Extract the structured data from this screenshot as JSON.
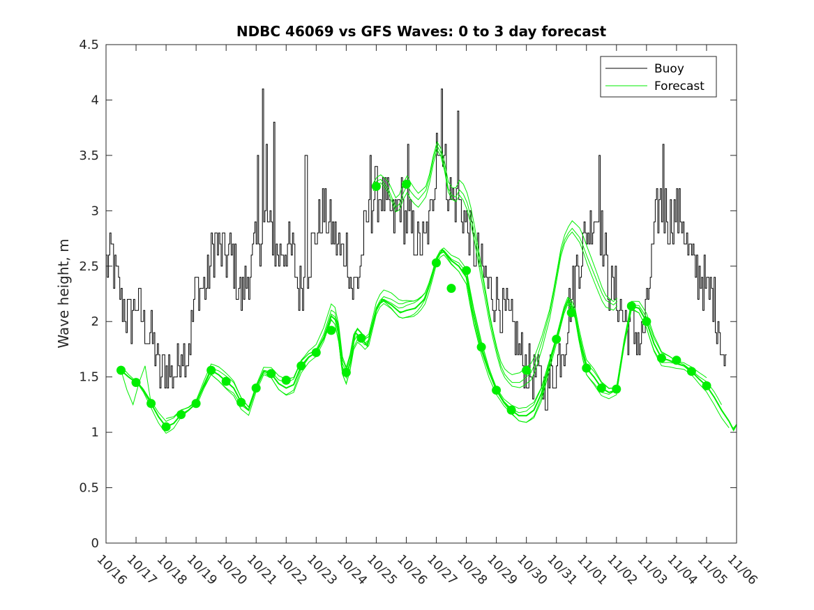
{
  "chart_data": {
    "type": "line",
    "title": "NDBC 46069 vs GFS Waves: 0 to 3 day forecast",
    "xlabel": "",
    "ylabel": "Wave height, m",
    "xlim": [
      0,
      21
    ],
    "ylim": [
      0,
      4.5
    ],
    "yticks": [
      0,
      0.5,
      1,
      1.5,
      2,
      2.5,
      3,
      3.5,
      4,
      4.5
    ],
    "ytick_labels": [
      "0",
      "0.5",
      "1",
      "1.5",
      "2",
      "2.5",
      "3",
      "3.5",
      "4",
      "4.5"
    ],
    "xtick_labels": [
      "10/16",
      "10/17",
      "10/18",
      "10/19",
      "10/20",
      "10/21",
      "10/22",
      "10/23",
      "10/24",
      "10/25",
      "10/26",
      "10/27",
      "10/28",
      "10/29",
      "10/30",
      "10/31",
      "11/01",
      "11/02",
      "11/03",
      "11/04",
      "11/05",
      "11/06"
    ],
    "legend": {
      "position": "top-right",
      "entries": [
        "Buoy",
        "Forecast"
      ]
    },
    "colors": {
      "buoy": "#000000",
      "forecast": "#00ee00",
      "axes": "#262626"
    },
    "buoy_anchors": [
      [
        0,
        2.5
      ],
      [
        0.2,
        2.6
      ],
      [
        0.3,
        2.4
      ],
      [
        0.5,
        2.2
      ],
      [
        0.8,
        2.0
      ],
      [
        1.0,
        2.2
      ],
      [
        1.2,
        2.0
      ],
      [
        1.4,
        1.9
      ],
      [
        1.6,
        1.8
      ],
      [
        1.8,
        1.5
      ],
      [
        2.0,
        1.6
      ],
      [
        2.3,
        1.5
      ],
      [
        2.5,
        1.8
      ],
      [
        2.7,
        1.7
      ],
      [
        3.0,
        2.3
      ],
      [
        3.3,
        2.3
      ],
      [
        3.6,
        2.7
      ],
      [
        3.9,
        2.6
      ],
      [
        4.2,
        2.6
      ],
      [
        4.5,
        2.2
      ],
      [
        4.7,
        2.4
      ],
      [
        5.0,
        2.7
      ],
      [
        5.3,
        2.9
      ],
      [
        5.5,
        2.8
      ],
      [
        5.7,
        2.6
      ],
      [
        6.0,
        2.7
      ],
      [
        6.2,
        2.6
      ],
      [
        6.4,
        2.3
      ],
      [
        6.6,
        2.4
      ],
      [
        6.8,
        2.6
      ],
      [
        7.0,
        2.8
      ],
      [
        7.2,
        3.0
      ],
      [
        7.4,
        2.9
      ],
      [
        7.6,
        2.8
      ],
      [
        7.8,
        2.6
      ],
      [
        8.0,
        2.7
      ],
      [
        8.2,
        2.3
      ],
      [
        8.4,
        2.4
      ],
      [
        8.6,
        2.8
      ],
      [
        8.8,
        3.0
      ],
      [
        9.0,
        3.2
      ],
      [
        9.2,
        3.1
      ],
      [
        9.4,
        3.0
      ],
      [
        9.6,
        2.9
      ],
      [
        9.8,
        3.1
      ],
      [
        10.0,
        2.9
      ],
      [
        10.2,
        2.8
      ],
      [
        10.4,
        2.7
      ],
      [
        10.6,
        2.7
      ],
      [
        10.8,
        2.9
      ],
      [
        11.0,
        3.6
      ],
      [
        11.2,
        3.5
      ],
      [
        11.4,
        3.2
      ],
      [
        11.6,
        3.1
      ],
      [
        11.8,
        3.0
      ],
      [
        12.0,
        2.9
      ],
      [
        12.2,
        2.7
      ],
      [
        12.4,
        2.6
      ],
      [
        12.6,
        2.4
      ],
      [
        12.8,
        2.3
      ],
      [
        13.0,
        2.2
      ],
      [
        13.2,
        2.1
      ],
      [
        13.4,
        2.0
      ],
      [
        13.6,
        1.9
      ],
      [
        13.8,
        1.7
      ],
      [
        14.0,
        1.6
      ],
      [
        14.3,
        1.5
      ],
      [
        14.6,
        1.4
      ],
      [
        15.0,
        1.6
      ],
      [
        15.3,
        1.9
      ],
      [
        15.6,
        2.4
      ],
      [
        16.0,
        2.8
      ],
      [
        16.3,
        3.0
      ],
      [
        16.5,
        2.8
      ],
      [
        16.7,
        2.4
      ],
      [
        17.0,
        2.2
      ],
      [
        17.3,
        2.0
      ],
      [
        17.6,
        1.9
      ],
      [
        17.8,
        1.8
      ],
      [
        18.0,
        2.1
      ],
      [
        18.2,
        2.6
      ],
      [
        18.4,
        3.1
      ],
      [
        18.6,
        3.0
      ],
      [
        18.8,
        2.9
      ],
      [
        19.0,
        3.0
      ],
      [
        19.2,
        2.9
      ],
      [
        19.4,
        2.6
      ],
      [
        19.6,
        2.5
      ],
      [
        19.8,
        2.4
      ],
      [
        20.0,
        2.3
      ],
      [
        20.2,
        2.2
      ],
      [
        20.4,
        2.0
      ],
      [
        20.5,
        1.8
      ],
      [
        20.6,
        1.5
      ],
      [
        20.7,
        1.75
      ]
    ],
    "buoy_spikes": [
      [
        5.05,
        3.5
      ],
      [
        5.2,
        4.1
      ],
      [
        5.35,
        3.6
      ],
      [
        5.6,
        3.8
      ],
      [
        6.65,
        3.5
      ],
      [
        8.8,
        3.45
      ],
      [
        10.05,
        3.6
      ],
      [
        11.0,
        3.7
      ],
      [
        11.15,
        4.1
      ],
      [
        11.7,
        3.9
      ],
      [
        16.4,
        3.5
      ],
      [
        18.55,
        3.6
      ]
    ],
    "forecast_dots": [
      [
        0.5,
        1.56
      ],
      [
        1.0,
        1.45
      ],
      [
        1.5,
        1.26
      ],
      [
        2.0,
        1.05
      ],
      [
        2.5,
        1.16
      ],
      [
        3.0,
        1.26
      ],
      [
        3.5,
        1.56
      ],
      [
        4.0,
        1.46
      ],
      [
        4.5,
        1.27
      ],
      [
        5.0,
        1.4
      ],
      [
        5.5,
        1.53
      ],
      [
        6.0,
        1.47
      ],
      [
        6.5,
        1.6
      ],
      [
        7.0,
        1.72
      ],
      [
        7.5,
        1.92
      ],
      [
        8.0,
        1.54
      ],
      [
        8.5,
        1.85
      ],
      [
        9.0,
        3.22
      ],
      [
        10.0,
        3.24
      ],
      [
        11.0,
        2.53
      ],
      [
        11.5,
        2.3
      ],
      [
        12.0,
        2.46
      ],
      [
        12.5,
        1.77
      ],
      [
        13.0,
        1.38
      ],
      [
        13.5,
        1.2
      ],
      [
        14.0,
        1.56
      ],
      [
        15.0,
        1.84
      ],
      [
        15.5,
        2.08
      ],
      [
        16.0,
        1.58
      ],
      [
        16.5,
        1.4
      ],
      [
        17.0,
        1.39
      ],
      [
        17.5,
        2.14
      ],
      [
        18.0,
        2.0
      ],
      [
        18.5,
        1.67
      ],
      [
        19.0,
        1.65
      ],
      [
        19.5,
        1.55
      ],
      [
        20.0,
        1.42
      ]
    ],
    "forecast_core": [
      [
        0.5,
        1.56
      ],
      [
        0.75,
        1.5
      ],
      [
        1.0,
        1.45
      ],
      [
        1.2,
        1.4
      ],
      [
        1.5,
        1.26
      ],
      [
        1.75,
        1.14
      ],
      [
        2.0,
        1.05
      ],
      [
        2.25,
        1.08
      ],
      [
        2.5,
        1.16
      ],
      [
        2.75,
        1.2
      ],
      [
        3.0,
        1.26
      ],
      [
        3.25,
        1.42
      ],
      [
        3.5,
        1.56
      ],
      [
        3.75,
        1.52
      ],
      [
        4.0,
        1.46
      ],
      [
        4.25,
        1.4
      ],
      [
        4.5,
        1.27
      ],
      [
        4.75,
        1.2
      ],
      [
        5.0,
        1.4
      ],
      [
        5.25,
        1.55
      ],
      [
        5.5,
        1.53
      ],
      [
        5.75,
        1.44
      ],
      [
        6.0,
        1.4
      ],
      [
        6.25,
        1.43
      ],
      [
        6.5,
        1.6
      ],
      [
        6.75,
        1.68
      ],
      [
        7.0,
        1.72
      ],
      [
        7.25,
        1.85
      ],
      [
        7.5,
        2.05
      ],
      [
        7.7,
        2.0
      ],
      [
        7.85,
        1.6
      ],
      [
        8.0,
        1.5
      ],
      [
        8.15,
        1.65
      ],
      [
        8.3,
        1.9
      ],
      [
        8.5,
        1.85
      ],
      [
        8.7,
        1.78
      ],
      [
        9.0,
        2.1
      ],
      [
        9.2,
        2.2
      ],
      [
        9.5,
        2.15
      ],
      [
        9.8,
        2.08
      ],
      [
        10.0,
        2.1
      ],
      [
        10.3,
        2.12
      ],
      [
        10.6,
        2.2
      ],
      [
        10.8,
        2.35
      ],
      [
        11.0,
        2.55
      ],
      [
        11.2,
        2.65
      ],
      [
        11.5,
        2.55
      ],
      [
        11.75,
        2.5
      ],
      [
        12.0,
        2.4
      ],
      [
        12.2,
        2.1
      ],
      [
        12.5,
        1.77
      ],
      [
        12.75,
        1.55
      ],
      [
        13.0,
        1.38
      ],
      [
        13.25,
        1.27
      ],
      [
        13.5,
        1.2
      ],
      [
        13.75,
        1.15
      ],
      [
        14.0,
        1.15
      ],
      [
        14.25,
        1.2
      ],
      [
        14.5,
        1.35
      ],
      [
        14.75,
        1.6
      ],
      [
        15.0,
        1.84
      ],
      [
        15.25,
        2.1
      ],
      [
        15.4,
        2.2
      ],
      [
        15.6,
        2.1
      ],
      [
        15.8,
        1.8
      ],
      [
        16.0,
        1.58
      ],
      [
        16.25,
        1.5
      ],
      [
        16.5,
        1.4
      ],
      [
        16.75,
        1.36
      ],
      [
        17.0,
        1.38
      ],
      [
        17.25,
        1.8
      ],
      [
        17.5,
        2.14
      ],
      [
        17.75,
        2.12
      ],
      [
        18.0,
        2.0
      ],
      [
        18.25,
        1.8
      ],
      [
        18.5,
        1.67
      ],
      [
        18.75,
        1.65
      ],
      [
        19.0,
        1.62
      ],
      [
        19.25,
        1.6
      ],
      [
        19.5,
        1.55
      ],
      [
        19.75,
        1.48
      ],
      [
        20.0,
        1.42
      ],
      [
        20.25,
        1.32
      ],
      [
        20.5,
        1.2
      ],
      [
        20.75,
        1.1
      ],
      [
        20.9,
        1.02
      ],
      [
        21.0,
        1.07
      ]
    ],
    "forecast_high": [
      [
        8.9,
        3.22
      ],
      [
        9.1,
        3.3
      ],
      [
        9.4,
        3.2
      ],
      [
        9.7,
        3.0
      ],
      [
        10.0,
        3.24
      ],
      [
        10.2,
        3.15
      ],
      [
        10.4,
        3.1
      ],
      [
        10.7,
        3.2
      ],
      [
        11.0,
        3.6
      ],
      [
        11.2,
        3.5
      ],
      [
        11.4,
        3.2
      ],
      [
        11.6,
        3.1
      ],
      [
        11.8,
        3.2
      ],
      [
        12.0,
        3.1
      ],
      [
        12.2,
        2.9
      ],
      [
        12.4,
        2.6
      ],
      [
        12.6,
        2.3
      ],
      [
        12.8,
        2.0
      ],
      [
        13.0,
        1.75
      ],
      [
        13.2,
        1.55
      ],
      [
        13.5,
        1.45
      ],
      [
        13.8,
        1.45
      ],
      [
        14.2,
        1.55
      ],
      [
        14.5,
        1.8
      ],
      [
        14.8,
        2.1
      ],
      [
        15.0,
        2.4
      ],
      [
        15.2,
        2.7
      ],
      [
        15.5,
        2.85
      ],
      [
        15.8,
        2.75
      ],
      [
        16.0,
        2.6
      ],
      [
        16.3,
        2.4
      ],
      [
        16.6,
        2.2
      ],
      [
        16.9,
        2.15
      ],
      [
        17.1,
        2.2
      ]
    ]
  }
}
